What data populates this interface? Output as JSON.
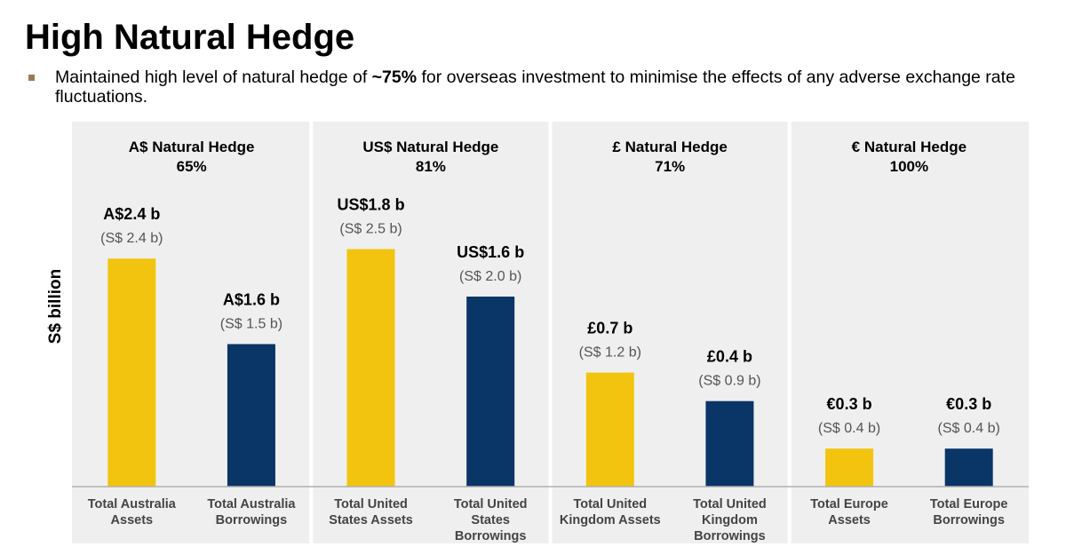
{
  "title": "High Natural Hedge",
  "bullet": {
    "text_before": "Maintained high level of natural hedge of ",
    "highlight": "~75%",
    "text_after": " for overseas investment to minimise the effects of any adverse exchange rate fluctuations."
  },
  "chart_data": {
    "type": "bar",
    "ylabel": "S$ billion",
    "ylim": [
      0,
      3.0
    ],
    "grid": false,
    "colors": {
      "assets": "#f2c40f",
      "borrowings": "#0a3567",
      "panel": "#efefef",
      "axis": "#b0b0b0"
    },
    "groups": [
      {
        "title": "A$ Natural Hedge",
        "hedge": "65%",
        "bars": [
          {
            "category": "Total Australia Assets",
            "category_lines": [
              "Total Australia",
              "Assets"
            ],
            "kind": "assets",
            "value": 2.4,
            "label": "A$2.4 b",
            "sublabel": "(S$ 2.4 b)"
          },
          {
            "category": "Total Australia Borrowings",
            "category_lines": [
              "Total Australia",
              "Borrowings"
            ],
            "kind": "borrowings",
            "value": 1.5,
            "label": "A$1.6 b",
            "sublabel": "(S$ 1.5 b)"
          }
        ]
      },
      {
        "title": "US$ Natural Hedge",
        "hedge": "81%",
        "bars": [
          {
            "category": "Total United States Assets",
            "category_lines": [
              "Total United",
              "States Assets"
            ],
            "kind": "assets",
            "value": 2.5,
            "label": "US$1.8 b",
            "sublabel": "(S$ 2.5 b)"
          },
          {
            "category": "Total United States Borrowings",
            "category_lines": [
              "Total United",
              "States",
              "Borrowings"
            ],
            "kind": "borrowings",
            "value": 2.0,
            "label": "US$1.6 b",
            "sublabel": "(S$ 2.0 b)"
          }
        ]
      },
      {
        "title": "£ Natural Hedge",
        "hedge": "71%",
        "bars": [
          {
            "category": "Total United Kingdom Assets",
            "category_lines": [
              "Total United",
              "Kingdom Assets"
            ],
            "kind": "assets",
            "value": 1.2,
            "label": "£0.7 b",
            "sublabel": "(S$ 1.2 b)"
          },
          {
            "category": "Total United Kingdom Borrowings",
            "category_lines": [
              "Total United",
              "Kingdom",
              "Borrowings"
            ],
            "kind": "borrowings",
            "value": 0.9,
            "label": "£0.4 b",
            "sublabel": "(S$ 0.9 b)"
          }
        ]
      },
      {
        "title": "€ Natural Hedge",
        "hedge": "100%",
        "bars": [
          {
            "category": "Total Europe Assets",
            "category_lines": [
              "Total Europe",
              "Assets"
            ],
            "kind": "assets",
            "value": 0.4,
            "label": "€0.3 b",
            "sublabel": "(S$ 0.4 b)"
          },
          {
            "category": "Total Europe Borrowings",
            "category_lines": [
              "Total Europe",
              "Borrowings"
            ],
            "kind": "borrowings",
            "value": 0.4,
            "label": "€0.3 b",
            "sublabel": "(S$ 0.4 b)"
          }
        ]
      }
    ]
  }
}
